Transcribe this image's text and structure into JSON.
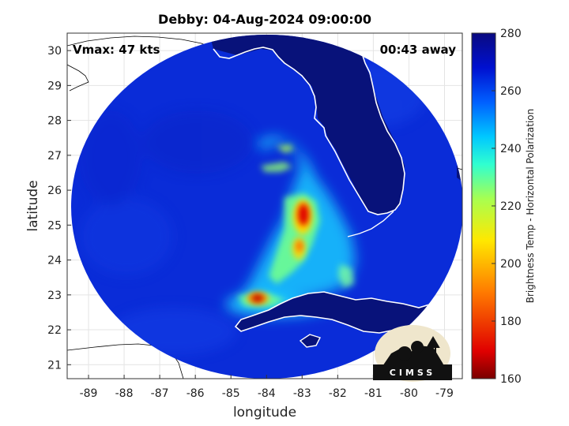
{
  "title": "Debby: 04-Aug-2024 09:00:00",
  "annotations": {
    "vmax": "Vmax: 47 kts",
    "time_away": "00:43 away"
  },
  "map": {
    "xlabel": "longitude",
    "ylabel": "latitude",
    "lon_range": [
      -89.6,
      -78.5
    ],
    "lat_range": [
      20.6,
      30.5
    ],
    "lon_ticks": [
      -89,
      -88,
      -87,
      -86,
      -85,
      -84,
      -83,
      -82,
      -81,
      -80,
      -79
    ],
    "lat_ticks": [
      21,
      22,
      23,
      24,
      25,
      26,
      27,
      28,
      29,
      30
    ],
    "scan_center": [
      -84.1,
      25.4
    ],
    "scan_radius_deg": 5.5,
    "background_color": "#0a2cd8",
    "land_color": "#08127a",
    "coast_color": "#ffffff"
  },
  "colorbar": {
    "label": "Brightness Temp - Horizontal Polarization",
    "min": 160,
    "max": 280,
    "ticks": [
      160,
      180,
      200,
      220,
      240,
      260,
      280
    ],
    "colors": [
      "#7a0000",
      "#e00000",
      "#ff7a00",
      "#ffe800",
      "#a8ff50",
      "#30ffd0",
      "#00c8ff",
      "#0060ff",
      "#0010d0",
      "#0a0a80"
    ]
  },
  "logo": {
    "text": "CIMSS"
  }
}
